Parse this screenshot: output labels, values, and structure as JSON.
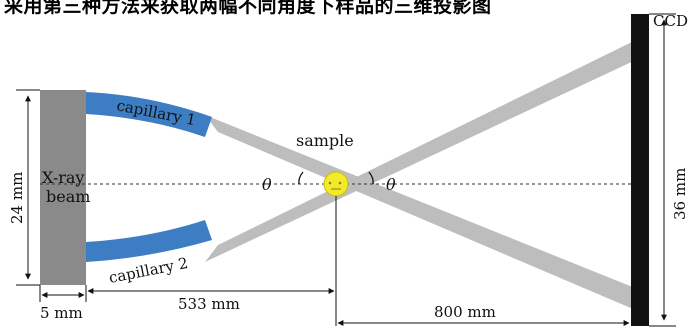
{
  "caption_top": "采用第三种方法来获取两幅不同角度下样品的三维投影图",
  "labels": {
    "ccd": "CCD",
    "beam_line1": "X-ray",
    "beam_line2": "beam",
    "capillary1": "capillary 1",
    "capillary2": "capillary 2",
    "sample": "sample",
    "theta": "θ",
    "beam_height": "24 mm",
    "detector_height": "36 mm",
    "beam_width": "5 mm",
    "source_to_sample": "533 mm",
    "sample_to_detector": "800 mm"
  },
  "colors": {
    "beam": "#8a8a8a",
    "capillary": "#3c7dc4",
    "ray": "#bdbdbd",
    "sample": "#f2ea2a",
    "detector": "#111111"
  }
}
